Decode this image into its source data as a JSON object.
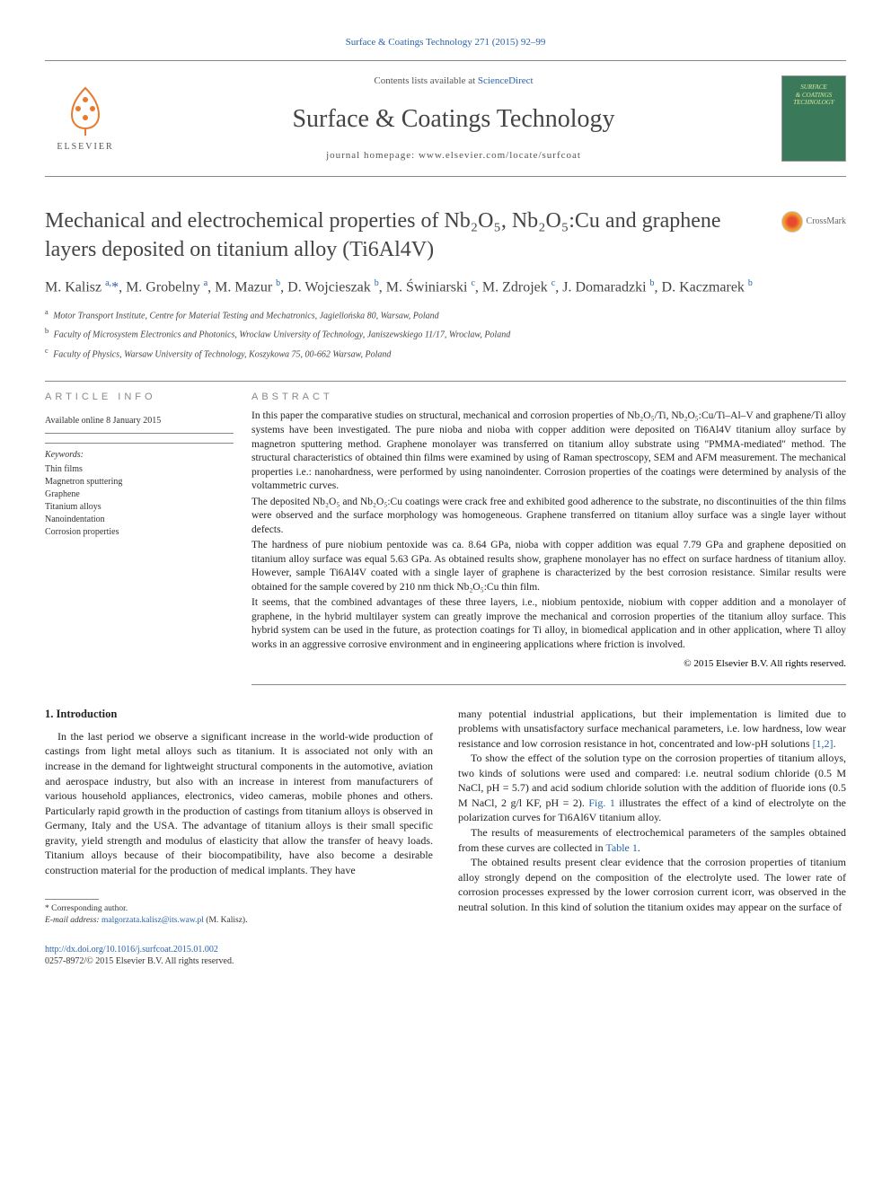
{
  "top_citation": "Surface & Coatings Technology 271 (2015) 92–99",
  "header": {
    "contents_prefix": "Contents lists available at ",
    "contents_link": "ScienceDirect",
    "journal_title": "Surface & Coatings Technology",
    "homepage_prefix": "journal homepage: ",
    "homepage_url": "www.elsevier.com/locate/surfcoat",
    "publisher_label": "ELSEVIER",
    "cover_text_1": "SURFACE",
    "cover_text_2": "& COATINGS",
    "cover_text_3": "TECHNOLOGY"
  },
  "crossmark_label": "CrossMark",
  "article": {
    "title": "Mechanical and electrochemical properties of Nb₂O₅, Nb₂O₅:Cu and graphene layers deposited on titanium alloy (Ti6Al4V)",
    "authors_html": "M. Kalisz <sup>a,</sup><span class='corr-star'>*</span>, M. Grobelny <sup>a</sup>, M. Mazur <sup>b</sup>, D. Wojcieszak <sup>b</sup>, M. Świniarski <sup>c</sup>, M. Zdrojek <sup>c</sup>, J. Domaradzki <sup>b</sup>, D. Kaczmarek <sup>b</sup>",
    "affiliations": [
      {
        "sup": "a",
        "text": "Motor Transport Institute, Centre for Material Testing and Mechatronics, Jagiellońska 80, Warsaw, Poland"
      },
      {
        "sup": "b",
        "text": "Faculty of Microsystem Electronics and Photonics, Wroclaw University of Technology, Janiszewskiego 11/17, Wroclaw, Poland"
      },
      {
        "sup": "c",
        "text": "Faculty of Physics, Warsaw University of Technology, Koszykowa 75, 00-662 Warsaw, Poland"
      }
    ]
  },
  "article_info": {
    "heading": "article info",
    "available": "Available online 8 January 2015",
    "keywords_label": "Keywords:",
    "keywords": [
      "Thin films",
      "Magnetron sputtering",
      "Graphene",
      "Titanium alloys",
      "Nanoindentation",
      "Corrosion properties"
    ]
  },
  "abstract": {
    "heading": "abstract",
    "paragraphs": [
      "In this paper the comparative studies on structural, mechanical and corrosion properties of Nb₂O₅/Ti, Nb₂O₅:Cu/Ti–Al–V and graphene/Ti alloy systems have been investigated. The pure nioba and nioba with copper addition were deposited on Ti6Al4V titanium alloy surface by magnetron sputtering method. Graphene monolayer was transferred on titanium alloy substrate using \"PMMA-mediated\" method. The structural characteristics of obtained thin films were examined by using of Raman spectroscopy, SEM and AFM measurement. The mechanical properties i.e.: nanohardness, were performed by using nanoindenter. Corrosion properties of the coatings were determined by analysis of the voltammetric curves.",
      "The deposited Nb₂O₅ and Nb₂O₅:Cu coatings were crack free and exhibited good adherence to the substrate, no discontinuities of the thin films were observed and the surface morphology was homogeneous. Graphene transferred on titanium alloy surface was a single layer without defects.",
      "The hardness of pure niobium pentoxide was ca. 8.64 GPa, nioba with copper addition was equal 7.79 GPa and graphene depositied on titanium alloy surface was equal 5.63 GPa. As obtained results show, graphene monolayer has no effect on surface hardness of titanium alloy. However, sample Ti6Al4V coated with a single layer of graphene is characterized by the best corrosion resistance. Similar results were obtained for the sample covered by 210 nm thick Nb₂O₅:Cu thin film.",
      "It seems, that the combined advantages of these three layers, i.e., niobium pentoxide, niobium with copper addition and a monolayer of graphene, in the hybrid multilayer system can greatly improve the mechanical and corrosion properties of the titanium alloy surface. This hybrid system can be used in the future, as protection coatings for Ti alloy, in biomedical application and in other application, where Ti alloy works in an aggressive corrosive environment and in engineering applications where friction is involved."
    ],
    "copyright": "© 2015 Elsevier B.V. All rights reserved."
  },
  "body": {
    "section_number": "1.",
    "section_title": "Introduction",
    "col1_p1": "In the last period we observe a significant increase in the world-wide production of castings from light metal alloys such as titanium. It is associated not only with an increase in the demand for lightweight structural components in the automotive, aviation and aerospace industry, but also with an increase in interest from manufacturers of various household appliances, electronics, video cameras, mobile phones and others. Particularly rapid growth in the production of castings from titanium alloys is observed in Germany, Italy and the USA. The advantage of titanium alloys is their small specific gravity, yield strength and modulus of elasticity that allow the transfer of heavy loads. Titanium alloys because of their biocompatibility, have also become a desirable construction material for the production of medical implants. They have",
    "col2_p1_pre": "many potential industrial applications, but their implementation is limited due to problems with unsatisfactory surface mechanical parameters, i.e. low hardness, low wear resistance and low corrosion resistance in hot, concentrated and low-pH solutions ",
    "col2_p1_ref": "[1,2]",
    "col2_p1_post": ".",
    "col2_p2_pre": "To show the effect of the solution type on the corrosion properties of titanium alloys, two kinds of solutions were used and compared: i.e. neutral sodium chloride (0.5 M NaCl, pH = 5.7) and acid sodium chloride solution with the addition of fluoride ions (0.5 M NaCl, 2 g/l KF, pH = 2). ",
    "col2_p2_ref": "Fig. 1",
    "col2_p2_post": " illustrates the effect of a kind of electrolyte on the polarization curves for Ti6Al6V titanium alloy.",
    "col2_p3_pre": "The results of measurements of electrochemical parameters of the samples obtained from these curves are collected in ",
    "col2_p3_ref": "Table 1",
    "col2_p3_post": ".",
    "col2_p4": "The obtained results present clear evidence that the corrosion properties of titanium alloy strongly depend on the composition of the electrolyte used. The lower rate of corrosion processes expressed by the lower corrosion current icorr, was observed in the neutral solution. In this kind of solution the titanium oxides may appear on the surface of"
  },
  "footnote": {
    "corr": "* Corresponding author.",
    "email_label": "E-mail address: ",
    "email": "malgorzata.kalisz@its.waw.pl",
    "email_suffix": " (M. Kalisz)."
  },
  "footer": {
    "doi": "http://dx.doi.org/10.1016/j.surfcoat.2015.01.002",
    "issn": "0257-8972/© 2015 Elsevier B.V. All rights reserved."
  }
}
